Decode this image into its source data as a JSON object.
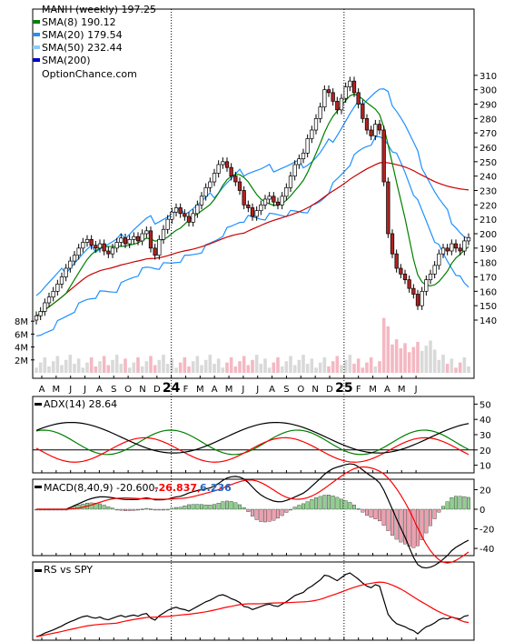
{
  "chart_data": [
    {
      "type": "candlestick",
      "panel": "price",
      "title": "MANH (weekly) 197.25",
      "watermark": "OptionChance.com",
      "x_tick_labels": [
        "A",
        "M",
        "J",
        "J",
        "A",
        "S",
        "O",
        "N",
        "D",
        "24",
        "F",
        "M",
        "A",
        "M",
        "J",
        "J",
        "A",
        "S",
        "O",
        "N",
        "D",
        "25",
        "F",
        "M",
        "A",
        "M",
        "J"
      ],
      "y_ticks": [
        140,
        150,
        160,
        170,
        180,
        190,
        200,
        210,
        220,
        230,
        240,
        250,
        260,
        270,
        280,
        290,
        300,
        310
      ],
      "ylim": [
        132,
        313
      ],
      "legend": [
        {
          "label": "SMA(8) 190.12",
          "color": "#008000"
        },
        {
          "label": "SMA(20) 179.54",
          "color": "#1E90FF"
        },
        {
          "label": "SMA(50) 232.44",
          "color": "#87CEFA"
        },
        {
          "label": "SMA(200)",
          "color": "#0000CD"
        }
      ],
      "price_closes": [
        143,
        146,
        152,
        156,
        160,
        165,
        170,
        176,
        181,
        185,
        190,
        194,
        196,
        192,
        190,
        193,
        188,
        186,
        190,
        194,
        197,
        193,
        196,
        198,
        195,
        200,
        202,
        190,
        185,
        196,
        203,
        210,
        215,
        218,
        214,
        212,
        208,
        214,
        220,
        226,
        232,
        236,
        242,
        248,
        250,
        246,
        240,
        236,
        230,
        220,
        218,
        212,
        216,
        220,
        224,
        226,
        222,
        220,
        226,
        232,
        240,
        248,
        252,
        256,
        266,
        272,
        280,
        288,
        300,
        298,
        292,
        286,
        294,
        302,
        306,
        298,
        290,
        280,
        272,
        268,
        276,
        272,
        236,
        200,
        186,
        176,
        172,
        168,
        162,
        158,
        150,
        160,
        168,
        172,
        178,
        186,
        190,
        188,
        193,
        190,
        188,
        195,
        197.25
      ],
      "sma_legend_values": {
        "SMA(8)": 190.12,
        "SMA(20)": 179.54,
        "SMA(50)": 232.44
      },
      "volume_ticks": [
        "2M",
        "4M",
        "6M",
        "8M"
      ],
      "volume_ylim": [
        0,
        9000000
      ]
    },
    {
      "type": "line",
      "panel": "ADX",
      "label": "ADX(14) 28.64",
      "y_ticks": [
        10,
        20,
        30,
        40,
        50
      ],
      "ylim": [
        5,
        55
      ],
      "series_colors": {
        "ADX": "#000000",
        "+DI": "#008000",
        "-DI": "#ff0000"
      },
      "adx_last": 28.64
    },
    {
      "type": "bar_line",
      "panel": "MACD",
      "label": "MACD(8,40,9) -20.600,",
      "val1": "-26.837,",
      "val2": "6.236",
      "val1_color": "#ff0000",
      "val2_color": "#1E66C8",
      "y_ticks": [
        -40,
        -20,
        0,
        20
      ],
      "ylim": [
        -50,
        28
      ]
    },
    {
      "type": "line",
      "panel": "RS",
      "label": "RS vs SPY",
      "series_colors": {
        "RS": "#000000",
        "RS_MA": "#ff0000"
      }
    }
  ]
}
